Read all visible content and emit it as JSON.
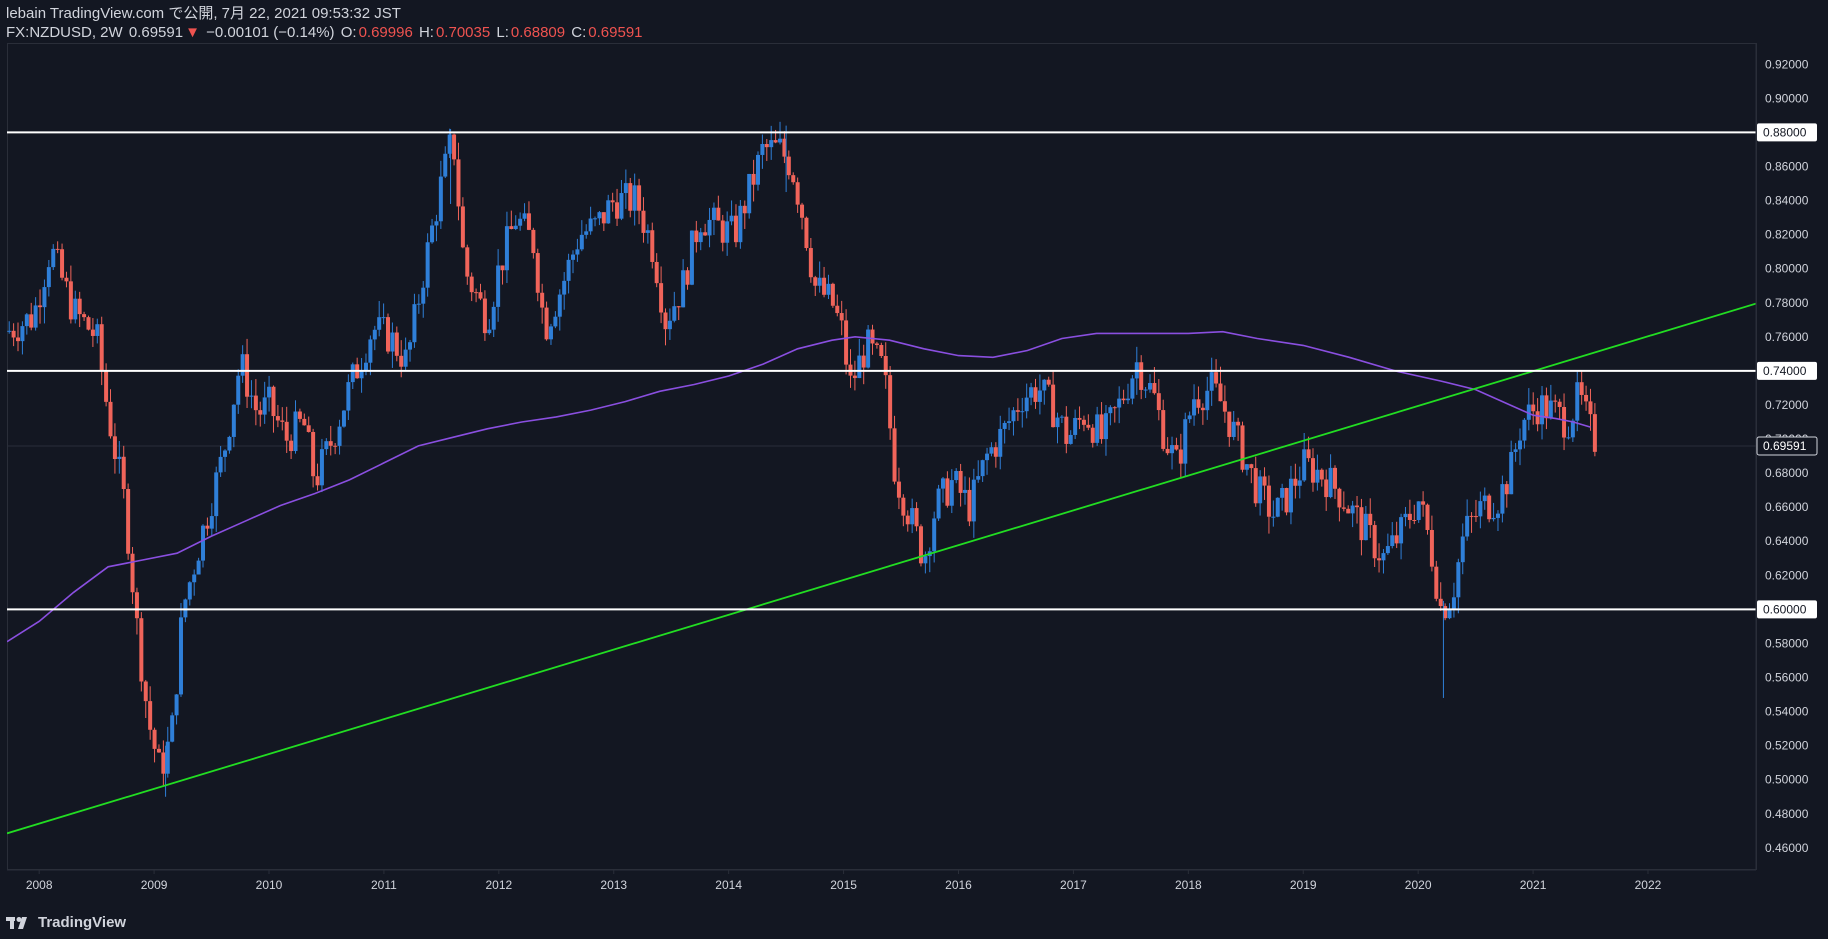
{
  "header": {
    "publisher_line": "lebain TradingView.com で公開, 7月 22, 2021 09:53:32 JST",
    "symbol": "FX:NZDUSD, 2W",
    "last": "0.69591",
    "change_arrow": "▼",
    "change": "−0.00101 (−0.14%)",
    "o_label": "O:",
    "o_value": "0.69996",
    "h_label": "H:",
    "h_value": "0.70035",
    "l_label": "L:",
    "l_value": "0.68809",
    "c_label": "C:",
    "c_value": "0.69591"
  },
  "footer": {
    "brand": "TradingView"
  },
  "colors": {
    "background": "#131722",
    "up": "#2f7fd8",
    "down": "#f0645a",
    "ma": "#8a4fe0",
    "trend": "#22dd22",
    "level": "#ffffff"
  },
  "chart_data": {
    "type": "candlestick",
    "symbol": "FX:NZDUSD",
    "interval": "2W",
    "y_axis_labels": [
      "0.92000",
      "0.90000",
      "0.88000",
      "0.86000",
      "0.84000",
      "0.82000",
      "0.80000",
      "0.78000",
      "0.76000",
      "0.74000",
      "0.72000",
      "0.70000",
      "0.69591",
      "0.68000",
      "0.66000",
      "0.64000",
      "0.62000",
      "0.60000",
      "0.58000",
      "0.56000",
      "0.54000",
      "0.52000",
      "0.50000",
      "0.48000",
      "0.46000"
    ],
    "y_ticks": [
      0.92,
      0.9,
      0.88,
      0.86,
      0.84,
      0.82,
      0.8,
      0.78,
      0.76,
      0.74,
      0.72,
      0.7,
      0.68,
      0.66,
      0.64,
      0.62,
      0.6,
      0.58,
      0.56,
      0.54,
      0.52,
      0.5,
      0.48,
      0.46
    ],
    "ylim": [
      0.447,
      0.9325
    ],
    "x_ticks": [
      "2008",
      "2009",
      "2010",
      "2011",
      "2012",
      "2013",
      "2014",
      "2015",
      "2016",
      "2017",
      "2018",
      "2019",
      "2020",
      "2021",
      "2022"
    ],
    "xlim": [
      2007.72,
      2022.94
    ],
    "current_price": 0.69591,
    "current_price_label": "0.69591",
    "horizontal_levels": [
      {
        "value": 0.88,
        "label": "0.88000"
      },
      {
        "value": 0.74,
        "label": "0.74000"
      },
      {
        "value": 0.6,
        "label": "0.60000"
      }
    ],
    "trendline": {
      "x1": 2007.72,
      "y1": 0.4685,
      "x2": 2022.94,
      "y2": 0.7795
    },
    "price_path": [
      [
        2007.72,
        0.763
      ],
      [
        2007.95,
        0.772
      ],
      [
        2008.1,
        0.812
      ],
      [
        2008.3,
        0.775
      ],
      [
        2008.5,
        0.76
      ],
      [
        2008.6,
        0.715
      ],
      [
        2008.75,
        0.66
      ],
      [
        2008.85,
        0.59
      ],
      [
        2008.95,
        0.535
      ],
      [
        2009.05,
        0.505
      ],
      [
        2009.15,
        0.525
      ],
      [
        2009.25,
        0.6
      ],
      [
        2009.4,
        0.64
      ],
      [
        2009.6,
        0.69
      ],
      [
        2009.75,
        0.745
      ],
      [
        2009.9,
        0.715
      ],
      [
        2010.0,
        0.72
      ],
      [
        2010.15,
        0.7
      ],
      [
        2010.3,
        0.71
      ],
      [
        2010.4,
        0.675
      ],
      [
        2010.55,
        0.7
      ],
      [
        2010.7,
        0.73
      ],
      [
        2010.9,
        0.765
      ],
      [
        2011.05,
        0.76
      ],
      [
        2011.2,
        0.745
      ],
      [
        2011.35,
        0.8
      ],
      [
        2011.5,
        0.85
      ],
      [
        2011.6,
        0.878
      ],
      [
        2011.7,
        0.8
      ],
      [
        2011.9,
        0.77
      ],
      [
        2012.0,
        0.8
      ],
      [
        2012.15,
        0.83
      ],
      [
        2012.3,
        0.815
      ],
      [
        2012.4,
        0.765
      ],
      [
        2012.55,
        0.79
      ],
      [
        2012.7,
        0.82
      ],
      [
        2012.85,
        0.825
      ],
      [
        2013.0,
        0.84
      ],
      [
        2013.2,
        0.84
      ],
      [
        2013.35,
        0.81
      ],
      [
        2013.45,
        0.77
      ],
      [
        2013.6,
        0.79
      ],
      [
        2013.75,
        0.83
      ],
      [
        2013.9,
        0.825
      ],
      [
        2014.05,
        0.82
      ],
      [
        2014.2,
        0.85
      ],
      [
        2014.3,
        0.87
      ],
      [
        2014.45,
        0.87
      ],
      [
        2014.55,
        0.86
      ],
      [
        2014.65,
        0.83
      ],
      [
        2014.75,
        0.79
      ],
      [
        2014.9,
        0.78
      ],
      [
        2015.0,
        0.76
      ],
      [
        2015.05,
        0.73
      ],
      [
        2015.2,
        0.755
      ],
      [
        2015.35,
        0.74
      ],
      [
        2015.45,
        0.68
      ],
      [
        2015.6,
        0.65
      ],
      [
        2015.7,
        0.63
      ],
      [
        2015.8,
        0.66
      ],
      [
        2015.95,
        0.675
      ],
      [
        2016.1,
        0.66
      ],
      [
        2016.25,
        0.69
      ],
      [
        2016.4,
        0.705
      ],
      [
        2016.55,
        0.725
      ],
      [
        2016.7,
        0.73
      ],
      [
        2016.85,
        0.715
      ],
      [
        2016.95,
        0.7
      ],
      [
        2017.1,
        0.715
      ],
      [
        2017.25,
        0.7
      ],
      [
        2017.4,
        0.72
      ],
      [
        2017.55,
        0.745
      ],
      [
        2017.7,
        0.725
      ],
      [
        2017.8,
        0.7
      ],
      [
        2017.9,
        0.685
      ],
      [
        2018.05,
        0.725
      ],
      [
        2018.2,
        0.73
      ],
      [
        2018.3,
        0.72
      ],
      [
        2018.45,
        0.695
      ],
      [
        2018.6,
        0.67
      ],
      [
        2018.75,
        0.655
      ],
      [
        2018.85,
        0.665
      ],
      [
        2019.0,
        0.685
      ],
      [
        2019.15,
        0.68
      ],
      [
        2019.3,
        0.67
      ],
      [
        2019.45,
        0.655
      ],
      [
        2019.6,
        0.64
      ],
      [
        2019.7,
        0.63
      ],
      [
        2019.85,
        0.645
      ],
      [
        2020.0,
        0.665
      ],
      [
        2020.1,
        0.64
      ],
      [
        2020.2,
        0.6
      ],
      [
        2020.3,
        0.61
      ],
      [
        2020.4,
        0.645
      ],
      [
        2020.55,
        0.66
      ],
      [
        2020.7,
        0.665
      ],
      [
        2020.8,
        0.68
      ],
      [
        2020.9,
        0.71
      ],
      [
        2021.05,
        0.72
      ],
      [
        2021.2,
        0.715
      ],
      [
        2021.3,
        0.71
      ],
      [
        2021.4,
        0.725
      ],
      [
        2021.5,
        0.705
      ],
      [
        2021.56,
        0.696
      ]
    ],
    "moving_average": [
      [
        2007.72,
        0.581
      ],
      [
        2008.0,
        0.593
      ],
      [
        2008.3,
        0.61
      ],
      [
        2008.6,
        0.625
      ],
      [
        2008.9,
        0.629
      ],
      [
        2009.2,
        0.633
      ],
      [
        2009.5,
        0.643
      ],
      [
        2009.8,
        0.652
      ],
      [
        2010.1,
        0.661
      ],
      [
        2010.4,
        0.668
      ],
      [
        2010.7,
        0.676
      ],
      [
        2011.0,
        0.686
      ],
      [
        2011.3,
        0.696
      ],
      [
        2011.6,
        0.701
      ],
      [
        2011.9,
        0.706
      ],
      [
        2012.2,
        0.71
      ],
      [
        2012.5,
        0.713
      ],
      [
        2012.8,
        0.717
      ],
      [
        2013.1,
        0.722
      ],
      [
        2013.4,
        0.728
      ],
      [
        2013.7,
        0.732
      ],
      [
        2014.0,
        0.737
      ],
      [
        2014.3,
        0.744
      ],
      [
        2014.6,
        0.753
      ],
      [
        2014.9,
        0.758
      ],
      [
        2015.1,
        0.76
      ],
      [
        2015.4,
        0.758
      ],
      [
        2015.7,
        0.753
      ],
      [
        2016.0,
        0.749
      ],
      [
        2016.3,
        0.748
      ],
      [
        2016.6,
        0.752
      ],
      [
        2016.9,
        0.759
      ],
      [
        2017.2,
        0.762
      ],
      [
        2017.6,
        0.762
      ],
      [
        2018.0,
        0.762
      ],
      [
        2018.3,
        0.763
      ],
      [
        2018.6,
        0.759
      ],
      [
        2019.0,
        0.755
      ],
      [
        2019.4,
        0.748
      ],
      [
        2019.8,
        0.74
      ],
      [
        2020.2,
        0.734
      ],
      [
        2020.5,
        0.729
      ],
      [
        2020.8,
        0.72
      ],
      [
        2021.0,
        0.714
      ],
      [
        2021.2,
        0.712
      ],
      [
        2021.35,
        0.71
      ],
      [
        2021.5,
        0.707
      ]
    ],
    "spikes": [
      {
        "x": 2020.22,
        "low": 0.548,
        "high": 0.605
      },
      {
        "x": 2014.5,
        "low": 0.845,
        "high": 0.884
      },
      {
        "x": 2011.58,
        "low": 0.838,
        "high": 0.882
      },
      {
        "x": 2009.1,
        "low": 0.49,
        "high": 0.52
      }
    ]
  }
}
